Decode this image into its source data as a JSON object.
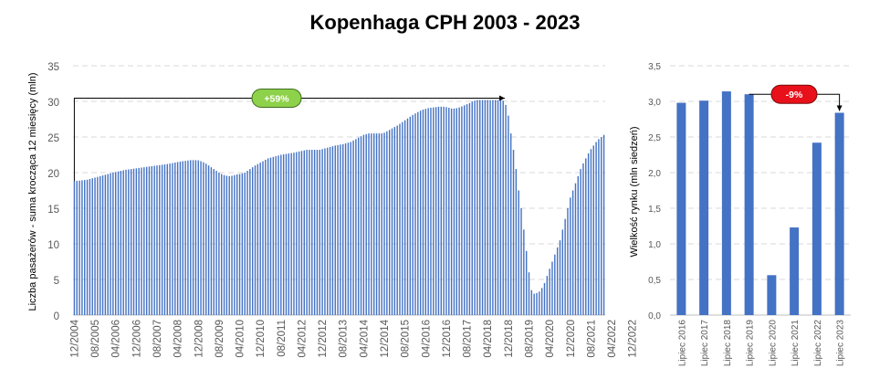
{
  "title": "Kopenhaga CPH 2003 - 2023",
  "chart_data": [
    {
      "type": "bar",
      "ylabel": "Liczba pasażerów - suma krocząca 12 miesięcy (mln)",
      "ylim": [
        0,
        35
      ],
      "yticks": [
        "0",
        "5",
        "10",
        "15",
        "20",
        "25",
        "30",
        "35"
      ],
      "x_tick_labels": [
        "12/2004",
        "08/2005",
        "04/2006",
        "12/2006",
        "08/2007",
        "04/2008",
        "12/2008",
        "08/2009",
        "04/2010",
        "12/2010",
        "08/2011",
        "04/2012",
        "12/2012",
        "08/2013",
        "04/2014",
        "12/2014",
        "08/2015",
        "04/2016",
        "12/2016",
        "08/2017",
        "04/2018",
        "12/2018",
        "08/2019",
        "04/2020",
        "12/2020",
        "08/2021",
        "04/2022",
        "12/2022"
      ],
      "series_start": "12/2004",
      "series_step_months": 1,
      "values": [
        18.8,
        18.84,
        18.88,
        18.92,
        18.96,
        19.0,
        19.1,
        19.2,
        19.3,
        19.4,
        19.5,
        19.6,
        19.7,
        19.8,
        19.9,
        20.0,
        20.08,
        20.16,
        20.24,
        20.32,
        20.4,
        20.45,
        20.5,
        20.55,
        20.6,
        20.65,
        20.7,
        20.75,
        20.8,
        20.85,
        20.9,
        20.95,
        21.0,
        21.05,
        21.1,
        21.15,
        21.2,
        21.27,
        21.34,
        21.41,
        21.48,
        21.55,
        21.6,
        21.65,
        21.7,
        21.75,
        21.75,
        21.75,
        21.72,
        21.6,
        21.45,
        21.25,
        21.0,
        20.75,
        20.5,
        20.25,
        20.0,
        19.8,
        19.65,
        19.55,
        19.5,
        19.55,
        19.65,
        19.75,
        19.8,
        19.9,
        20.0,
        20.25,
        20.5,
        20.75,
        21.0,
        21.2,
        21.4,
        21.6,
        21.8,
        22.0,
        22.1,
        22.2,
        22.3,
        22.4,
        22.5,
        22.56,
        22.62,
        22.68,
        22.74,
        22.8,
        22.88,
        22.96,
        23.04,
        23.12,
        23.2,
        23.2,
        23.2,
        23.2,
        23.2,
        23.2,
        23.3,
        23.4,
        23.5,
        23.6,
        23.7,
        23.8,
        23.87,
        23.94,
        24.0,
        24.1,
        24.2,
        24.3,
        24.5,
        24.7,
        24.9,
        25.1,
        25.3,
        25.4,
        25.5,
        25.5,
        25.5,
        25.5,
        25.5,
        25.5,
        25.6,
        25.8,
        26.0,
        26.2,
        26.4,
        26.6,
        26.85,
        27.1,
        27.35,
        27.6,
        27.85,
        28.1,
        28.3,
        28.5,
        28.7,
        28.85,
        28.95,
        29.05,
        29.1,
        29.15,
        29.2,
        29.25,
        29.25,
        29.25,
        29.2,
        29.1,
        29.0,
        29.0,
        29.05,
        29.15,
        29.3,
        29.45,
        29.6,
        29.75,
        30.0,
        30.1,
        30.2,
        30.2,
        30.2,
        30.2,
        30.2,
        30.2,
        30.2,
        30.2,
        30.2,
        30.2,
        30.1,
        29.5,
        28.0,
        25.5,
        23.2,
        20.5,
        17.5,
        15.0,
        12.0,
        9.0,
        6.0,
        3.5,
        3.0,
        3.1,
        3.3,
        3.8,
        4.5,
        5.5,
        6.5,
        7.5,
        8.5,
        9.5,
        10.5,
        12.0,
        13.5,
        15.0,
        16.5,
        17.5,
        18.5,
        19.5,
        20.5,
        21.3,
        22.0,
        22.7,
        23.3,
        23.8,
        24.3,
        24.7,
        25.0,
        25.3
      ]
    },
    {
      "type": "bar",
      "ylabel": "Wielkość rynku (mln siedzeń)",
      "ylim": [
        0,
        3.5
      ],
      "yticks": [
        "0,0",
        "0,5",
        "1,0",
        "1,5",
        "2,0",
        "2,5",
        "3,0",
        "3,5"
      ],
      "categories": [
        "Lipiec 2016",
        "Lipiec 2017",
        "Lipiec 2018",
        "Lipiec 2019",
        "Lipiec 2020",
        "Lipiec 2021",
        "Lipiec 2022",
        "Lipiec 2023"
      ],
      "values": [
        2.98,
        3.01,
        3.14,
        3.1,
        0.56,
        1.23,
        2.42,
        2.84
      ]
    }
  ],
  "annotations": {
    "left_badge": "+59%",
    "right_badge": "-9%",
    "left_badge_color": "#8ed14a",
    "right_badge_color": "#e8101a"
  },
  "colors": {
    "bar": "#4472c4",
    "grid": "#d9d9d9",
    "axis": "#bfbfbf"
  }
}
